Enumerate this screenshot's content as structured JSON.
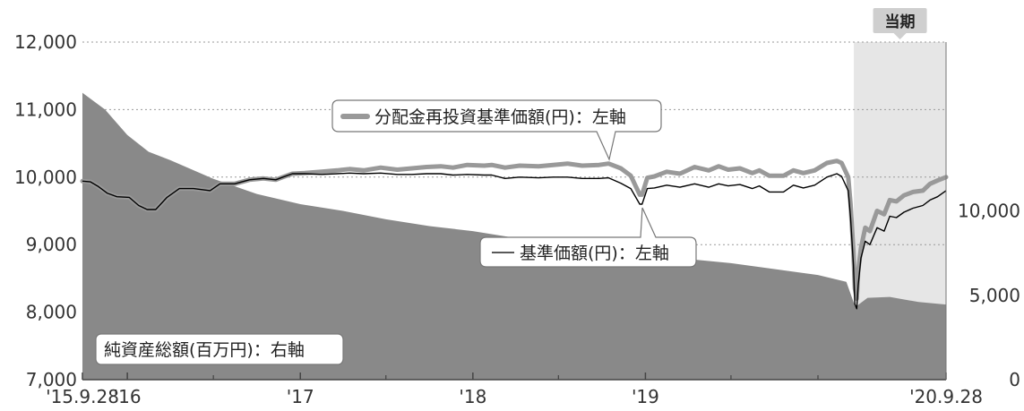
{
  "chart_data": {
    "type": "line",
    "period_label": "当期",
    "ylim_left": [
      7000,
      12000
    ],
    "ylim_right": [
      0,
      20000
    ],
    "left_ticks": [
      "12,000",
      "11,000",
      "10,000",
      "9,000",
      "8,000",
      "7,000"
    ],
    "right_ticks": [
      "10,000",
      "5,000",
      "0"
    ],
    "x_tick_labels": [
      "'15.9.28",
      "'16",
      "'17",
      "'18",
      "'19",
      "'20.9.28"
    ],
    "grid": "dotted horizontal",
    "series": [
      {
        "name": "分配金再投資基準価額(円)：左軸",
        "color": "#999999",
        "axis": "left",
        "x": [
          "2015-09-28",
          "2015-10-15",
          "2015-11-01",
          "2015-11-20",
          "2015-12-10",
          "2016-01-05",
          "2016-01-25",
          "2016-02-12",
          "2016-03-01",
          "2016-03-25",
          "2016-04-20",
          "2016-05-20",
          "2016-06-24",
          "2016-07-15",
          "2016-08-15",
          "2016-09-15",
          "2016-10-15",
          "2016-11-10",
          "2016-11-25",
          "2016-12-15",
          "2017-01-10",
          "2017-02-15",
          "2017-03-20",
          "2017-04-15",
          "2017-05-15",
          "2017-06-20",
          "2017-07-25",
          "2017-08-25",
          "2017-09-25",
          "2017-10-25",
          "2017-11-20",
          "2017-12-20",
          "2018-01-25",
          "2018-02-10",
          "2018-03-10",
          "2018-04-10",
          "2018-05-20",
          "2018-06-20",
          "2018-07-20",
          "2018-08-20",
          "2018-09-25",
          "2018-10-15",
          "2018-11-10",
          "2018-12-01",
          "2018-12-20",
          "2018-12-25",
          "2019-01-05",
          "2019-01-20",
          "2019-02-15",
          "2019-03-15",
          "2019-04-15",
          "2019-05-15",
          "2019-06-05",
          "2019-06-25",
          "2019-07-20",
          "2019-08-15",
          "2019-08-30",
          "2019-09-20",
          "2019-10-20",
          "2019-11-10",
          "2019-12-01",
          "2019-12-25",
          "2020-01-20",
          "2020-02-10",
          "2020-02-20",
          "2020-03-05",
          "2020-03-10",
          "2020-03-16",
          "2020-03-19",
          "2020-03-23",
          "2020-03-26",
          "2020-04-01",
          "2020-04-10",
          "2020-04-20",
          "2020-05-05",
          "2020-05-20",
          "2020-06-01",
          "2020-06-15",
          "2020-07-01",
          "2020-07-20",
          "2020-08-10",
          "2020-08-25",
          "2020-09-10",
          "2020-09-28"
        ],
        "y": [
          9940,
          9930,
          9860,
          9760,
          9710,
          9700,
          9580,
          9520,
          9520,
          9700,
          9830,
          9830,
          9800,
          9900,
          9900,
          9960,
          9980,
          9960,
          10000,
          10050,
          10060,
          10080,
          10100,
          10120,
          10100,
          10140,
          10110,
          10130,
          10150,
          10160,
          10140,
          10180,
          10170,
          10180,
          10140,
          10170,
          10160,
          10180,
          10200,
          10170,
          10180,
          10200,
          10130,
          10020,
          9740,
          9740,
          9990,
          10010,
          10080,
          10050,
          10150,
          10100,
          10160,
          10110,
          10130,
          10060,
          10100,
          10020,
          10020,
          10100,
          10060,
          10100,
          10210,
          10240,
          10210,
          10000,
          9600,
          8900,
          8350,
          8200,
          8600,
          8950,
          9250,
          9200,
          9500,
          9450,
          9660,
          9640,
          9730,
          9780,
          9800,
          9900,
          9950,
          10000
        ]
      },
      {
        "name": "基準価額(円)：左軸",
        "color": "#000000",
        "axis": "left",
        "x": [
          "2015-09-28",
          "2015-10-15",
          "2015-11-01",
          "2015-11-20",
          "2015-12-10",
          "2016-01-05",
          "2016-01-25",
          "2016-02-12",
          "2016-03-01",
          "2016-03-25",
          "2016-04-20",
          "2016-05-20",
          "2016-06-24",
          "2016-07-15",
          "2016-08-15",
          "2016-09-15",
          "2016-10-15",
          "2016-11-10",
          "2016-11-25",
          "2016-12-15",
          "2017-01-10",
          "2017-02-15",
          "2017-03-20",
          "2017-04-15",
          "2017-05-15",
          "2017-06-20",
          "2017-07-25",
          "2017-08-25",
          "2017-09-25",
          "2017-10-25",
          "2017-11-20",
          "2017-12-20",
          "2018-01-25",
          "2018-02-10",
          "2018-03-10",
          "2018-04-10",
          "2018-05-20",
          "2018-06-20",
          "2018-07-20",
          "2018-08-20",
          "2018-09-25",
          "2018-10-15",
          "2018-11-10",
          "2018-12-01",
          "2018-12-20",
          "2018-12-25",
          "2019-01-05",
          "2019-01-20",
          "2019-02-15",
          "2019-03-15",
          "2019-04-15",
          "2019-05-15",
          "2019-06-05",
          "2019-06-25",
          "2019-07-20",
          "2019-08-15",
          "2019-08-30",
          "2019-09-20",
          "2019-10-20",
          "2019-11-10",
          "2019-12-01",
          "2019-12-25",
          "2020-01-20",
          "2020-02-10",
          "2020-02-20",
          "2020-03-05",
          "2020-03-10",
          "2020-03-16",
          "2020-03-19",
          "2020-03-23",
          "2020-03-26",
          "2020-04-01",
          "2020-04-10",
          "2020-04-20",
          "2020-05-05",
          "2020-05-20",
          "2020-06-01",
          "2020-06-15",
          "2020-07-01",
          "2020-07-20",
          "2020-08-10",
          "2020-08-25",
          "2020-09-10",
          "2020-09-28"
        ],
        "y": [
          9940,
          9930,
          9860,
          9760,
          9710,
          9700,
          9580,
          9520,
          9520,
          9700,
          9830,
          9830,
          9800,
          9900,
          9900,
          9960,
          9980,
          9960,
          10000,
          10050,
          10050,
          10040,
          10050,
          10060,
          10050,
          10060,
          10040,
          10040,
          10050,
          10050,
          10030,
          10040,
          10030,
          10030,
          9980,
          10000,
          9990,
          10000,
          10000,
          9980,
          9980,
          9990,
          9910,
          9830,
          9600,
          9600,
          9830,
          9840,
          9880,
          9850,
          9900,
          9850,
          9900,
          9870,
          9890,
          9830,
          9870,
          9780,
          9780,
          9880,
          9840,
          9880,
          10000,
          10050,
          10010,
          9800,
          9400,
          8700,
          8120,
          8050,
          8400,
          8800,
          9050,
          9000,
          9250,
          9200,
          9420,
          9400,
          9480,
          9540,
          9580,
          9660,
          9710,
          9800
        ]
      },
      {
        "name": "純資産総額(百万円)：右軸",
        "color": "#898989",
        "type": "area",
        "axis": "right",
        "x": [
          "2015-09-28",
          "2015-11-15",
          "2016-01-01",
          "2016-02-15",
          "2016-04-01",
          "2016-07-01",
          "2016-10-01",
          "2017-01-01",
          "2017-04-01",
          "2017-07-01",
          "2017-10-01",
          "2018-01-01",
          "2018-04-01",
          "2018-07-01",
          "2018-10-01",
          "2018-12-15",
          "2019-01-01",
          "2019-04-01",
          "2019-07-01",
          "2019-10-01",
          "2020-01-01",
          "2020-03-01",
          "2020-03-20",
          "2020-04-15",
          "2020-06-01",
          "2020-08-01",
          "2020-09-28"
        ],
        "y": [
          17000,
          16000,
          14500,
          13500,
          13000,
          11900,
          11000,
          10400,
          10000,
          9500,
          9100,
          8800,
          8400,
          8100,
          7700,
          7300,
          7250,
          7150,
          6900,
          6550,
          6200,
          5800,
          4300,
          4850,
          4900,
          4600,
          4450
        ]
      }
    ],
    "period_start": "2020-03-17",
    "x_ticks": [
      "2015-09-28",
      "2016-01-01",
      "2017-01-01",
      "2018-01-01",
      "2019-01-01",
      "2020-09-28"
    ],
    "x_minor_ticks": [
      "2016-07-01",
      "2017-07-01",
      "2018-07-01",
      "2019-07-01",
      "2020-01-01"
    ]
  }
}
